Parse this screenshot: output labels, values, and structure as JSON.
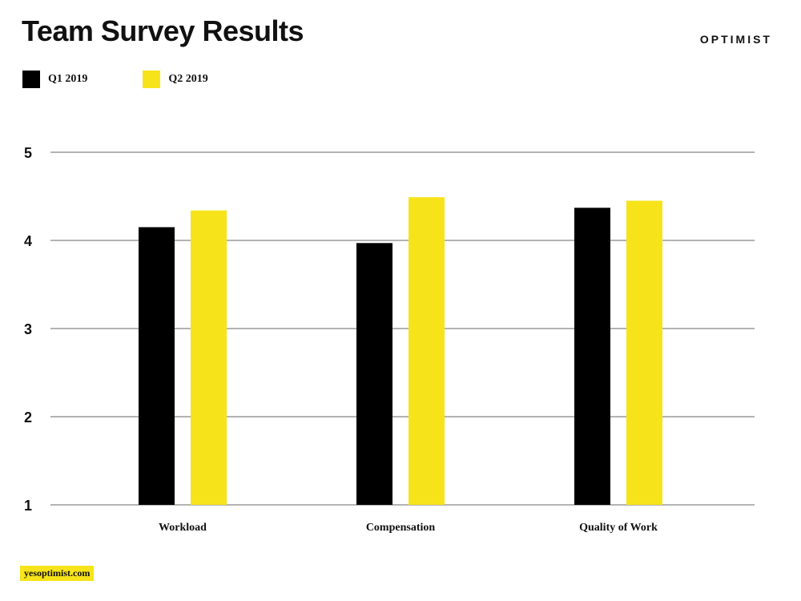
{
  "header": {
    "title": "Team Survey Results",
    "brand": "OPTIMIST"
  },
  "footer": {
    "site": "yesoptimist.com"
  },
  "colors": {
    "q1": "#000000",
    "q2": "#f7e31a",
    "grid": "#b3b3b3",
    "accent": "#f7e31a"
  },
  "chart_data": {
    "type": "bar",
    "title": "Team Survey Results",
    "xlabel": "",
    "ylabel": "",
    "categories": [
      "Workload",
      "Compensation",
      "Quality of Work"
    ],
    "series": [
      {
        "name": "Q1 2019",
        "values": [
          4.15,
          3.97,
          4.37
        ]
      },
      {
        "name": "Q2 2019",
        "values": [
          4.34,
          4.49,
          4.45
        ]
      }
    ],
    "ylim": [
      1,
      5
    ],
    "yticks": [
      "1",
      "2",
      "3",
      "4",
      "5"
    ],
    "grid": true,
    "legend": "top-left"
  }
}
